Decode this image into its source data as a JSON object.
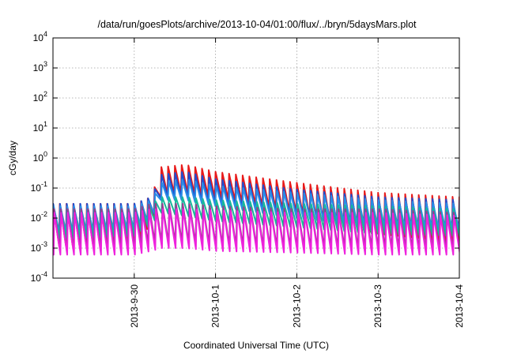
{
  "chart_data": {
    "type": "line",
    "title": "/data/run/goesPlots/archive/2013-10-04/01:00/flux/../bryn/5daysMars.plot",
    "xlabel": "Coordinated Universal Time (UTC)",
    "ylabel": "cGy/day",
    "yscale": "log",
    "xlim": [
      "2013-09-29T00:00",
      "2013-10-04T00:00"
    ],
    "ylim": [
      0.0001,
      10000
    ],
    "grid": true,
    "legend": "none",
    "x_tick_labels": [
      "2013-9-30",
      "2013-10-1",
      "2013-10-2",
      "2013-10-3",
      "2013-10-4"
    ],
    "x_ticks": [
      "2013-09-30T00:00",
      "2013-10-01T00:00",
      "2013-10-02T00:00",
      "2013-10-03T00:00",
      "2013-10-04T00:00"
    ],
    "y_ticks": [
      {
        "value": 0.0001,
        "base": "10",
        "exp": "-4"
      },
      {
        "value": 0.001,
        "base": "10",
        "exp": "-3"
      },
      {
        "value": 0.01,
        "base": "10",
        "exp": "-2"
      },
      {
        "value": 0.1,
        "base": "10",
        "exp": "-1"
      },
      {
        "value": 1,
        "base": "10",
        "exp": "0"
      },
      {
        "value": 10,
        "base": "10",
        "exp": "1"
      },
      {
        "value": 100,
        "base": "10",
        "exp": "2"
      },
      {
        "value": 1000,
        "base": "10",
        "exp": "3"
      },
      {
        "value": 10000,
        "base": "10",
        "exp": "4"
      }
    ],
    "sawtooth_period_hours": 2,
    "series": [
      {
        "color": "#e81a1a",
        "points": [
          {
            "x": "2013-09-29T00:00",
            "peak": 0.03,
            "trough": 0.0012
          },
          {
            "x": "2013-09-30T00:00",
            "peak": 0.03,
            "trough": 0.0015
          },
          {
            "x": "2013-09-30T05:00",
            "peak": 0.05,
            "trough": 0.006
          },
          {
            "x": "2013-09-30T08:00",
            "peak": 0.5,
            "trough": 0.06
          },
          {
            "x": "2013-09-30T15:00",
            "peak": 0.6,
            "trough": 0.07
          },
          {
            "x": "2013-10-01T00:00",
            "peak": 0.35,
            "trough": 0.05
          },
          {
            "x": "2013-10-02T00:00",
            "peak": 0.15,
            "trough": 0.015
          },
          {
            "x": "2013-10-03T00:00",
            "peak": 0.07,
            "trough": 0.003
          },
          {
            "x": "2013-10-04T00:00",
            "peak": 0.05,
            "trough": 0.0015
          }
        ]
      },
      {
        "color": "#1f4fd0",
        "points": [
          {
            "x": "2013-09-29T00:00",
            "peak": 0.03,
            "trough": 0.0025
          },
          {
            "x": "2013-09-30T00:00",
            "peak": 0.03,
            "trough": 0.003
          },
          {
            "x": "2013-09-30T05:00",
            "peak": 0.05,
            "trough": 0.008
          },
          {
            "x": "2013-09-30T08:00",
            "peak": 0.28,
            "trough": 0.05
          },
          {
            "x": "2013-09-30T15:00",
            "peak": 0.35,
            "trough": 0.05
          },
          {
            "x": "2013-10-01T00:00",
            "peak": 0.2,
            "trough": 0.03
          },
          {
            "x": "2013-10-02T00:00",
            "peak": 0.09,
            "trough": 0.012
          },
          {
            "x": "2013-10-03T00:00",
            "peak": 0.05,
            "trough": 0.004
          },
          {
            "x": "2013-10-04T00:00",
            "peak": 0.04,
            "trough": 0.003
          }
        ]
      },
      {
        "color": "#2a8ce6",
        "points": [
          {
            "x": "2013-09-29T00:00",
            "peak": 0.025,
            "trough": 0.003
          },
          {
            "x": "2013-09-30T00:00",
            "peak": 0.025,
            "trough": 0.004
          },
          {
            "x": "2013-09-30T05:00",
            "peak": 0.04,
            "trough": 0.009
          },
          {
            "x": "2013-09-30T08:00",
            "peak": 0.15,
            "trough": 0.04
          },
          {
            "x": "2013-09-30T15:00",
            "peak": 0.2,
            "trough": 0.04
          },
          {
            "x": "2013-10-01T00:00",
            "peak": 0.12,
            "trough": 0.025
          },
          {
            "x": "2013-10-02T00:00",
            "peak": 0.07,
            "trough": 0.01
          },
          {
            "x": "2013-10-03T00:00",
            "peak": 0.04,
            "trough": 0.005
          },
          {
            "x": "2013-10-04T00:00",
            "peak": 0.03,
            "trough": 0.004
          }
        ]
      },
      {
        "color": "#18b89a",
        "points": [
          {
            "x": "2013-09-29T00:00",
            "peak": 0.02,
            "trough": 0.002
          },
          {
            "x": "2013-09-30T00:00",
            "peak": 0.02,
            "trough": 0.0025
          },
          {
            "x": "2013-09-30T05:00",
            "peak": 0.03,
            "trough": 0.006
          },
          {
            "x": "2013-09-30T08:00",
            "peak": 0.05,
            "trough": 0.015
          },
          {
            "x": "2013-09-30T15:00",
            "peak": 0.05,
            "trough": 0.012
          },
          {
            "x": "2013-10-01T00:00",
            "peak": 0.04,
            "trough": 0.008
          },
          {
            "x": "2013-10-02T00:00",
            "peak": 0.03,
            "trough": 0.005
          },
          {
            "x": "2013-10-03T00:00",
            "peak": 0.025,
            "trough": 0.003
          },
          {
            "x": "2013-10-04T00:00",
            "peak": 0.02,
            "trough": 0.0025
          }
        ]
      },
      {
        "color": "#9a3a8e",
        "points": [
          {
            "x": "2013-09-29T00:00",
            "peak": 0.02,
            "trough": 0.0008
          },
          {
            "x": "2013-09-30T00:00",
            "peak": 0.02,
            "trough": 0.001
          },
          {
            "x": "2013-09-30T05:00",
            "peak": 0.03,
            "trough": 0.0015
          },
          {
            "x": "2013-09-30T08:00",
            "peak": 0.03,
            "trough": 0.0015
          },
          {
            "x": "2013-09-30T15:00",
            "peak": 0.03,
            "trough": 0.0015
          },
          {
            "x": "2013-10-01T00:00",
            "peak": 0.025,
            "trough": 0.0012
          },
          {
            "x": "2013-10-02T00:00",
            "peak": 0.02,
            "trough": 0.001
          },
          {
            "x": "2013-10-03T00:00",
            "peak": 0.02,
            "trough": 0.001
          },
          {
            "x": "2013-10-04T00:00",
            "peak": 0.015,
            "trough": 0.0008
          }
        ]
      },
      {
        "color": "#ee22dd",
        "points": [
          {
            "x": "2013-09-29T00:00",
            "peak": 0.015,
            "trough": 0.0006
          },
          {
            "x": "2013-09-30T00:00",
            "peak": 0.015,
            "trough": 0.0006
          },
          {
            "x": "2013-09-30T05:00",
            "peak": 0.02,
            "trough": 0.0008
          },
          {
            "x": "2013-09-30T08:00",
            "peak": 0.02,
            "trough": 0.001
          },
          {
            "x": "2013-09-30T15:00",
            "peak": 0.02,
            "trough": 0.001
          },
          {
            "x": "2013-10-01T00:00",
            "peak": 0.018,
            "trough": 0.0008
          },
          {
            "x": "2013-10-02T00:00",
            "peak": 0.015,
            "trough": 0.0007
          },
          {
            "x": "2013-10-03T00:00",
            "peak": 0.015,
            "trough": 0.0006
          },
          {
            "x": "2013-10-04T00:00",
            "peak": 0.012,
            "trough": 0.0006
          }
        ]
      }
    ]
  }
}
